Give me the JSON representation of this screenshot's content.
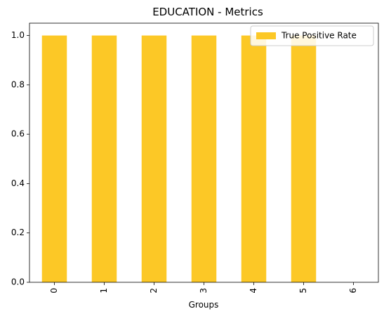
{
  "chart_data": {
    "type": "bar",
    "title": "EDUCATION - Metrics",
    "xlabel": "Groups",
    "ylabel": "",
    "categories": [
      "0",
      "1",
      "2",
      "3",
      "4",
      "5",
      "6"
    ],
    "series": [
      {
        "name": "True Positive Rate",
        "values": [
          1.0,
          1.0,
          1.0,
          1.0,
          1.0,
          1.0,
          0.0
        ],
        "color": "#fcc826"
      }
    ],
    "ylim": [
      0,
      1.05
    ],
    "yticks": [
      "0.0",
      "0.2",
      "0.4",
      "0.6",
      "0.8",
      "1.0"
    ],
    "grid": false,
    "legend_position": "top-right"
  }
}
